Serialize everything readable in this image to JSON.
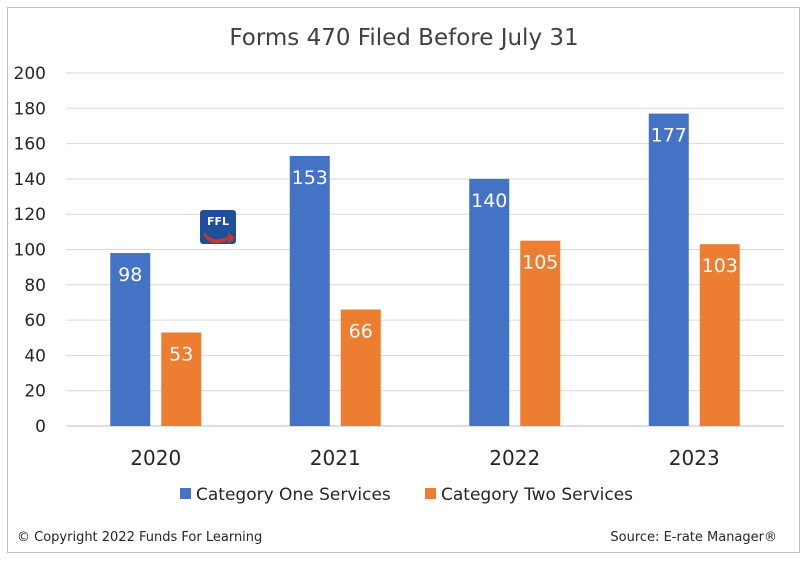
{
  "chart_data": {
    "type": "bar",
    "title": "Forms 470 Filed Before July 31",
    "categories": [
      "2020",
      "2021",
      "2022",
      "2023"
    ],
    "series": [
      {
        "name": "Category One Services",
        "values": [
          98,
          153,
          140,
          177
        ],
        "color": "#4472c4"
      },
      {
        "name": "Category Two Services",
        "values": [
          53,
          66,
          105,
          103
        ],
        "color": "#ed7d31"
      }
    ],
    "ylim": [
      0,
      200
    ],
    "yticks": [
      0,
      20,
      40,
      60,
      80,
      100,
      120,
      140,
      160,
      180,
      200
    ],
    "grid": true,
    "legend": "bottom",
    "xlabel": "",
    "ylabel": ""
  },
  "logo": {
    "text": "FFL",
    "icon": "ffl-logo-icon"
  },
  "footer": {
    "copyright": "© Copyright 2022 Funds For Learning",
    "source": "Source: E-rate Manager®"
  },
  "colors": {
    "gridline": "#d9d9d9",
    "axis": "#bfbfbf",
    "logo_blue": "#1f4e9a",
    "logo_red": "#c0392b"
  }
}
